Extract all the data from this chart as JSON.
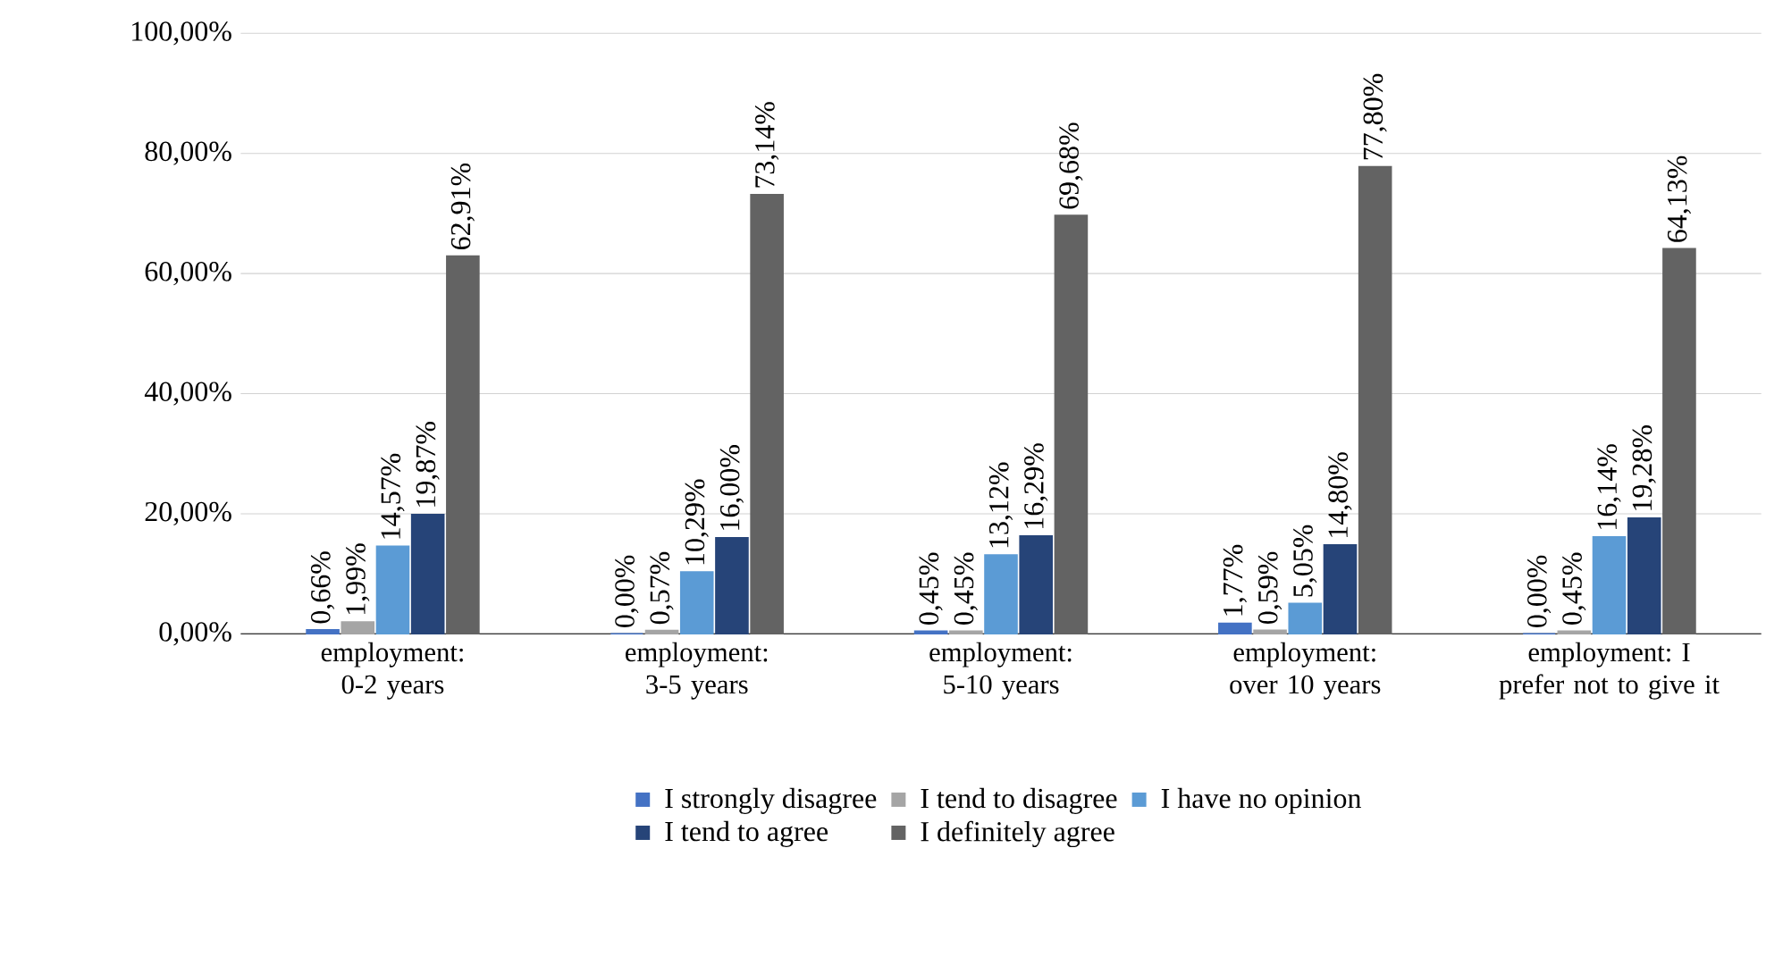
{
  "chart_data": {
    "type": "bar",
    "categories": [
      "employment: 0-2 years",
      "employment: 3-5 years",
      "employment: 5-10 years",
      "employment: over 10 years",
      "employment: I prefer not to give it"
    ],
    "ylim": [
      0,
      100
    ],
    "yticks": [
      {
        "value": 0,
        "label": "0,00%"
      },
      {
        "value": 20,
        "label": "20,00%"
      },
      {
        "value": 40,
        "label": "40,00%"
      },
      {
        "value": 60,
        "label": "60,00%"
      },
      {
        "value": 80,
        "label": "80,00%"
      },
      {
        "value": 100,
        "label": "100,00%"
      }
    ],
    "grid": "y",
    "legend": "bottom",
    "series": [
      {
        "name": "I strongly disagree",
        "color": "#4472c4",
        "values": [
          0.66,
          0.0,
          0.45,
          1.77,
          0.0
        ],
        "value_labels": [
          "0,66%",
          "0,00%",
          "0,45%",
          "1,77%",
          "0,00%"
        ]
      },
      {
        "name": "I tend to disagree",
        "color": "#a5a5a5",
        "values": [
          1.99,
          0.57,
          0.45,
          0.59,
          0.45
        ],
        "value_labels": [
          "1,99%",
          "0,57%",
          "0,45%",
          "0,59%",
          "0,45%"
        ]
      },
      {
        "name": "I have no opinion",
        "color": "#5b9bd5",
        "values": [
          14.57,
          10.29,
          13.12,
          5.05,
          16.14
        ],
        "value_labels": [
          "14,57%",
          "10,29%",
          "13,12%",
          "5,05%",
          "16,14%"
        ]
      },
      {
        "name": "I tend to agree",
        "color": "#264478",
        "values": [
          19.87,
          16.0,
          16.29,
          14.8,
          19.28
        ],
        "value_labels": [
          "19,87%",
          "16,00%",
          "16,29%",
          "14,80%",
          "19,28%"
        ]
      },
      {
        "name": "I definitely agree",
        "color": "#636363",
        "values": [
          62.91,
          73.14,
          69.68,
          77.8,
          64.13
        ],
        "value_labels": [
          "62,91%",
          "73,14%",
          "69,68%",
          "77,80%",
          "64,13%"
        ]
      }
    ]
  }
}
